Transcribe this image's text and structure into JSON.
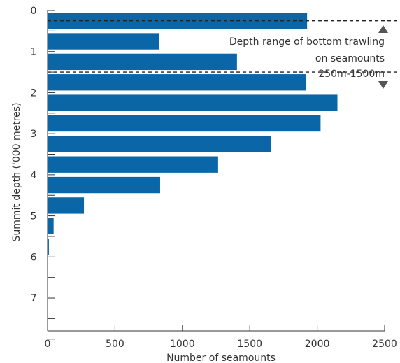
{
  "chart_data": {
    "type": "bar",
    "orientation": "horizontal",
    "title": "",
    "xlabel": "Number of seamounts",
    "ylabel": "Summit depth ('000 metres)",
    "xlim": [
      0,
      2500
    ],
    "ylim": [
      0,
      7.8
    ],
    "xticks": [
      0,
      500,
      1000,
      1500,
      2000,
      2500
    ],
    "yticks": [
      0,
      1,
      2,
      3,
      4,
      5,
      6,
      7
    ],
    "grid": false,
    "bar_color": "#0b66a8",
    "bin_width_km": 0.5,
    "categories": [
      "0-0.5",
      "0.5-1",
      "1-1.5",
      "1.5-2",
      "2-2.5",
      "2.5-3",
      "3-3.5",
      "3.5-4",
      "4-4.5",
      "4.5-5",
      "5-5.5",
      "5.5-6",
      "6-6.5",
      "6.5-7",
      "7-7.5"
    ],
    "values": [
      1925,
      830,
      1405,
      1915,
      2150,
      2025,
      1660,
      1265,
      835,
      270,
      45,
      10,
      5,
      3,
      2
    ],
    "annotation": {
      "lines": [
        "Depth range of bottom trawling",
        "on seamounts",
        "250m-1500m"
      ],
      "range": [
        0.25,
        1.5
      ]
    }
  }
}
